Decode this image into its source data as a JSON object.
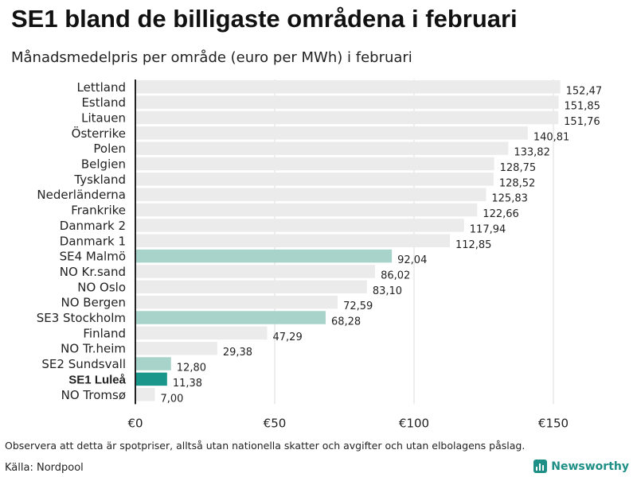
{
  "title": "SE1 bland de billigaste områdena i februari",
  "subtitle": "Månadsmedelpris per område (euro per MWh) i februari",
  "footer": {
    "note": "Observera att detta är spotpriser, alltså utan nationella skatter och avgifter och utan elbolagens påslag.",
    "source": "Källa: Nordpool",
    "brand": "Newsworthy"
  },
  "colors": {
    "default": "#ebebeb",
    "se": "#a8d3cb",
    "highlight": "#1a968b",
    "axis": "#222222",
    "grid": "#dddddd"
  },
  "chart_data": {
    "type": "bar",
    "orientation": "horizontal",
    "categories": [
      "Lettland",
      "Estland",
      "Litauen",
      "Österrike",
      "Polen",
      "Belgien",
      "Tyskland",
      "Nederländerna",
      "Frankrike",
      "Danmark 2",
      "Danmark 1",
      "SE4 Malmö",
      "NO Kr.sand",
      "NO Oslo",
      "NO Bergen",
      "SE3 Stockholm",
      "Finland",
      "NO Tr.heim",
      "SE2 Sundsvall",
      "SE1 Luleå",
      "NO Tromsø"
    ],
    "values": [
      152.47,
      151.85,
      151.76,
      140.81,
      133.82,
      128.75,
      128.52,
      125.83,
      122.66,
      117.94,
      112.85,
      92.04,
      86.02,
      83.1,
      72.59,
      68.28,
      47.29,
      29.38,
      12.8,
      11.38,
      7.0
    ],
    "value_labels": [
      "152,47",
      "151,85",
      "151,76",
      "140,81",
      "133,82",
      "128,75",
      "128,52",
      "125,83",
      "122,66",
      "117,94",
      "112,85",
      "92,04",
      "86,02",
      "83,10",
      "72,59",
      "68,28",
      "47,29",
      "29,38",
      "12,80",
      "11,38",
      "7,00"
    ],
    "swedish_areas": [
      "SE4 Malmö",
      "SE3 Stockholm",
      "SE2 Sundsvall"
    ],
    "highlight": "SE1 Luleå",
    "xticks": [
      0,
      50,
      100,
      150
    ],
    "xtick_labels": [
      "€0",
      "€50",
      "€100",
      "€150"
    ],
    "xlim": [
      0,
      175
    ],
    "grid": "vertical"
  }
}
